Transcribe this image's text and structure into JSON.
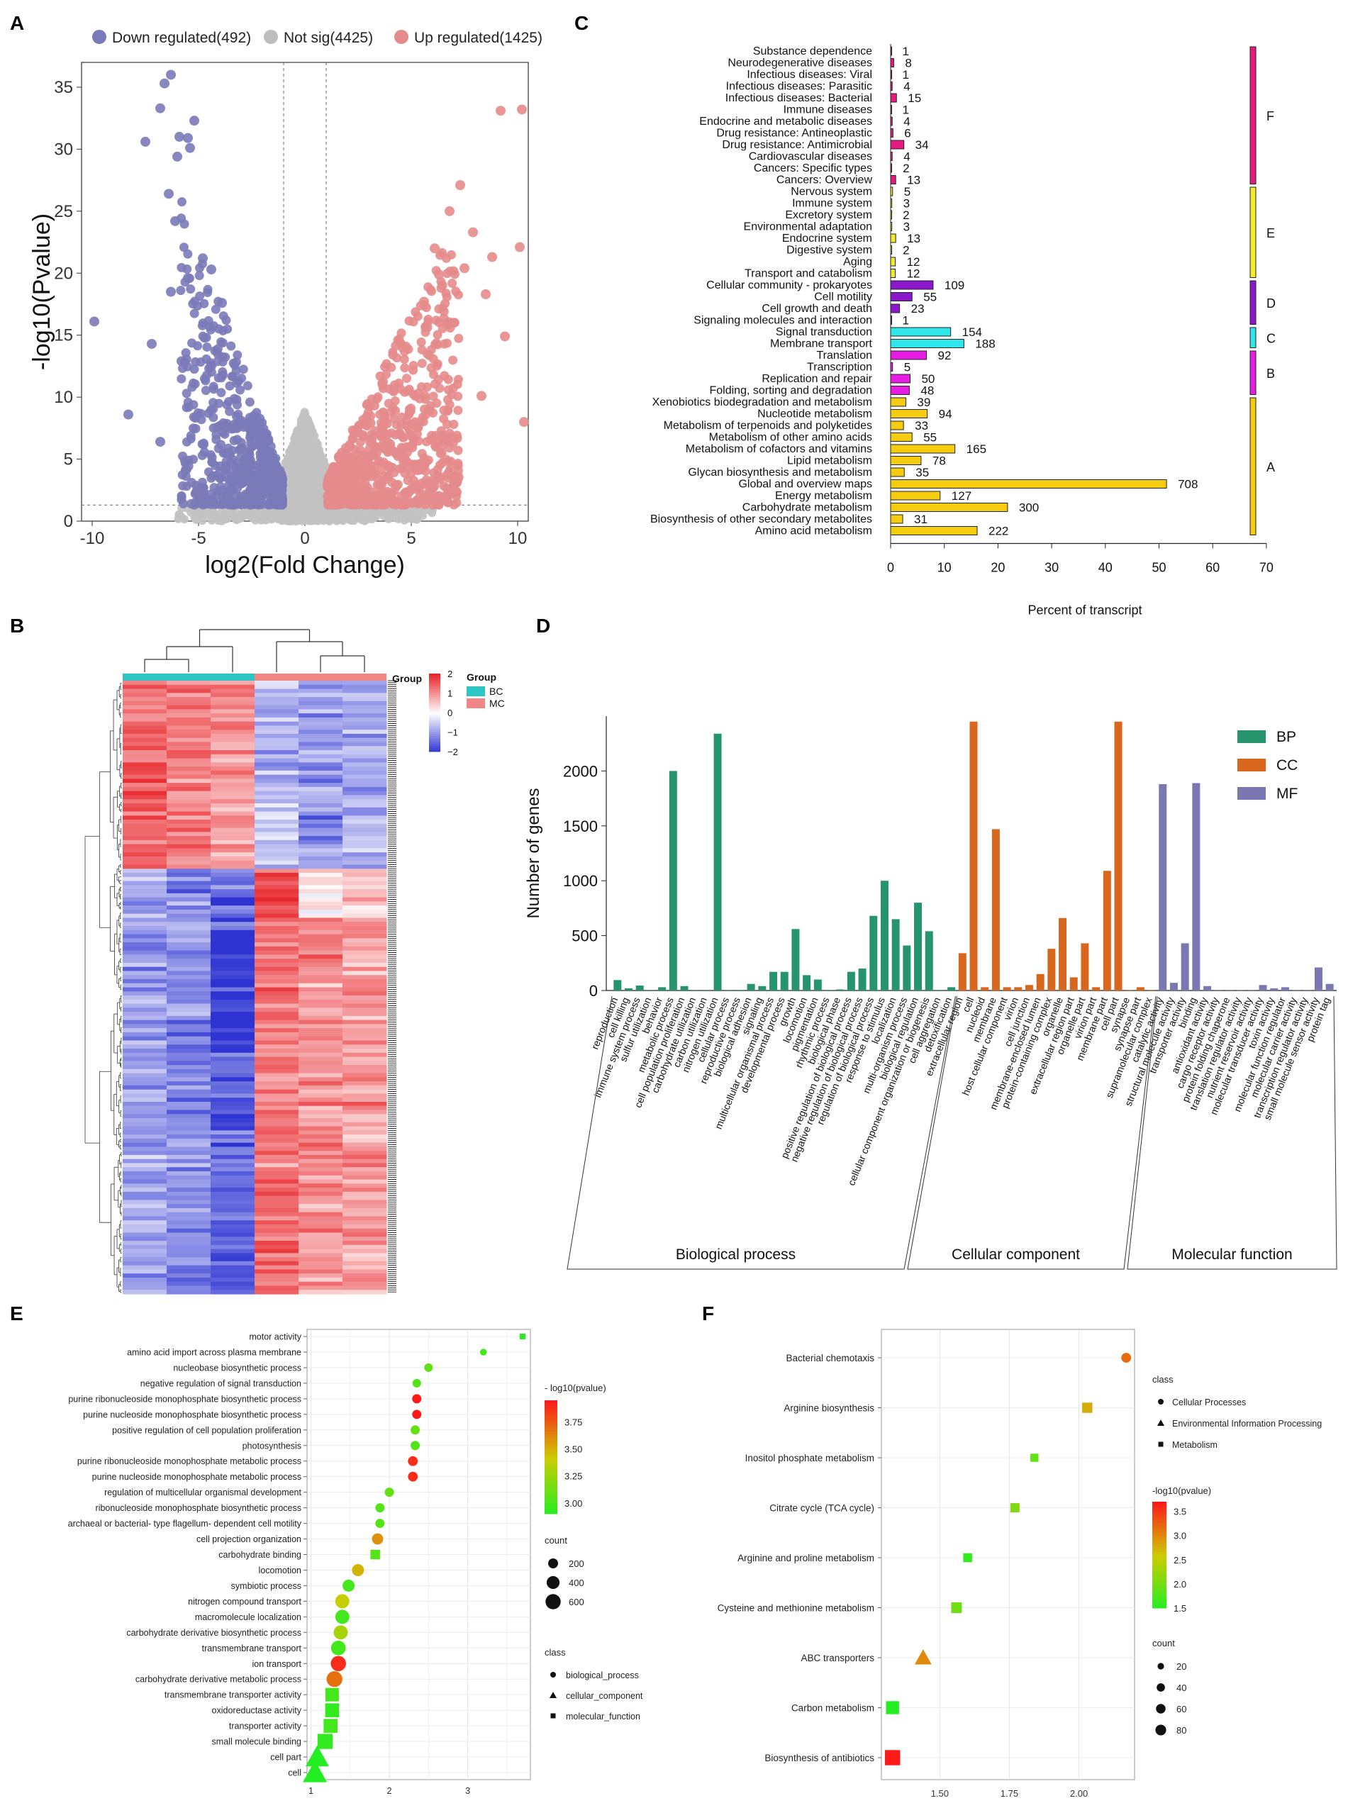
{
  "panel_letters": [
    "A",
    "B",
    "C",
    "D",
    "E",
    "F"
  ],
  "chart_data": [
    {
      "id": "A",
      "type": "scatter",
      "title": "",
      "xlabel": "log2(Fold Change)",
      "ylabel": "-log10(Pvalue)",
      "xlim": [
        -10.5,
        10.5
      ],
      "ylim": [
        0,
        37
      ],
      "xticks": [
        -10,
        -5,
        0,
        5,
        10
      ],
      "yticks": [
        0,
        5,
        10,
        15,
        20,
        25,
        30,
        35
      ],
      "legend": [
        {
          "label": "Down regulated(492)",
          "color": "#7b7ab8"
        },
        {
          "label": "Not sig(4425)",
          "color": "#bdbdbd"
        },
        {
          "label": "Up regulated(1425)",
          "color": "#e58b8b"
        }
      ],
      "thresholds": {
        "x": [
          -1,
          1
        ],
        "y": 1.3
      },
      "highlight_points": {
        "down": [
          [
            -6.3,
            36.0
          ],
          [
            -6.6,
            35.3
          ],
          [
            -6.8,
            33.3
          ],
          [
            -5.2,
            32.3
          ],
          [
            -5.9,
            31.0
          ],
          [
            -7.5,
            30.6
          ],
          [
            -5.5,
            30.9
          ],
          [
            -5.4,
            30.1
          ],
          [
            -6.0,
            29.4
          ],
          [
            -6.4,
            26.4
          ],
          [
            -6.1,
            24.2
          ],
          [
            -9.9,
            16.1
          ],
          [
            -8.3,
            8.6
          ],
          [
            -6.3,
            18.5
          ],
          [
            -7.2,
            14.3
          ],
          [
            -4.8,
            21.2
          ],
          [
            -4.4,
            20.3
          ],
          [
            -5.5,
            19.6
          ],
          [
            -3.9,
            17.6
          ],
          [
            -6.8,
            6.4
          ],
          [
            -5.8,
            12.9
          ]
        ],
        "up": [
          [
            10.2,
            33.2
          ],
          [
            9.2,
            33.1
          ],
          [
            7.3,
            27.1
          ],
          [
            6.8,
            25.0
          ],
          [
            7.9,
            23.3
          ],
          [
            8.5,
            18.3
          ],
          [
            7.5,
            20.4
          ],
          [
            10.1,
            22.1
          ],
          [
            8.8,
            21.3
          ],
          [
            6.3,
            19.9
          ],
          [
            7.0,
            16.0
          ],
          [
            9.4,
            14.9
          ],
          [
            10.3,
            8.0
          ],
          [
            8.3,
            10.1
          ],
          [
            5.6,
            17.7
          ],
          [
            6.1,
            22.0
          ]
        ]
      }
    },
    {
      "id": "B",
      "type": "heatmap",
      "legend_title": "Group",
      "groups": [
        {
          "label": "BC",
          "color": "#2ec6c4"
        },
        {
          "label": "MC",
          "color": "#f08784"
        }
      ],
      "color_scale": {
        "ticks": [
          2,
          1,
          0,
          -1,
          -2
        ],
        "low": "#2d34d1",
        "mid": "#ffffff",
        "high": "#e8262b"
      },
      "columns": 6
    },
    {
      "id": "C",
      "type": "bar",
      "xlabel": "Percent of transcript",
      "xlim": [
        0,
        70
      ],
      "xticks": [
        0,
        10,
        20,
        30,
        40,
        50,
        60,
        70
      ],
      "categories": [
        "Substance dependence",
        "Neurodegenerative diseases",
        "Infectious diseases: Viral",
        "Infectious diseases: Parasitic",
        "Infectious diseases: Bacterial",
        "Immune diseases",
        "Endocrine and metabolic diseases",
        "Drug resistance: Antineoplastic",
        "Drug resistance: Antimicrobial",
        "Cardiovascular diseases",
        "Cancers: Specific types",
        "Cancers: Overview",
        "Nervous system",
        "Immune system",
        "Excretory system",
        "Environmental adaptation",
        "Endocrine system",
        "Digestive system",
        "Aging",
        "Transport and catabolism",
        "Cellular community - prokaryotes",
        "Cell motility",
        "Cell growth and death",
        "Signaling molecules and interaction",
        "Signal transduction",
        "Membrane transport",
        "Translation",
        "Transcription",
        "Replication and repair",
        "Folding, sorting and degradation",
        "Xenobiotics biodegradation and metabolism",
        "Nucleotide metabolism",
        "Metabolism of terpenoids and polyketides",
        "Metabolism of other amino acids",
        "Metabolism of cofactors and vitamins",
        "Lipid metabolism",
        "Glycan biosynthesis and metabolism",
        "Global and overview maps",
        "Energy metabolism",
        "Carbohydrate metabolism",
        "Biosynthesis of other secondary metabolites",
        "Amino acid metabolism"
      ],
      "values": [
        1,
        8,
        1,
        4,
        15,
        1,
        4,
        6,
        34,
        4,
        2,
        13,
        5,
        3,
        2,
        3,
        13,
        2,
        12,
        12,
        109,
        55,
        23,
        1,
        154,
        188,
        92,
        5,
        50,
        48,
        39,
        94,
        33,
        55,
        165,
        78,
        35,
        708,
        127,
        300,
        31,
        222
      ],
      "value_labels": [
        "1",
        "8",
        "1",
        "4",
        "15",
        "1",
        "4",
        "6",
        "34",
        "4",
        "2",
        "13",
        "5",
        "3",
        "2",
        "3",
        "13",
        "2",
        "12",
        "12",
        "109",
        "55",
        "23",
        "1",
        "154",
        "188",
        "92",
        "5",
        "50",
        "48",
        "39",
        "94",
        "33",
        "55",
        "165",
        "78",
        "35",
        "708",
        "127",
        "300",
        "31",
        "222"
      ],
      "classes": [
        "F",
        "F",
        "F",
        "F",
        "F",
        "F",
        "F",
        "F",
        "F",
        "F",
        "F",
        "F",
        "E",
        "E",
        "E",
        "E",
        "E",
        "E",
        "E",
        "E",
        "D",
        "D",
        "D",
        "D",
        "C",
        "C",
        "B",
        "B",
        "B",
        "B",
        "A",
        "A",
        "A",
        "A",
        "A",
        "A",
        "A",
        "A",
        "A",
        "A",
        "A",
        "A"
      ],
      "class_labels": [
        "F",
        "E",
        "D",
        "C",
        "B",
        "A"
      ],
      "class_colors": {
        "F": "#e5197f",
        "E": "#f1ea2d",
        "D": "#8a17c9",
        "C": "#2fe7ea",
        "B": "#e71ce3",
        "A": "#f6cc10"
      },
      "percent_per_count": 0.0726
    },
    {
      "id": "D",
      "type": "bar",
      "ylabel": "Number of genes",
      "ylim": [
        0,
        2500
      ],
      "yticks": [
        0,
        500,
        1000,
        1500,
        2000
      ],
      "legend": [
        {
          "label": "BP",
          "color": "#26956d"
        },
        {
          "label": "CC",
          "color": "#d9661d"
        },
        {
          "label": "MF",
          "color": "#7b77b0"
        }
      ],
      "group_labels": [
        "Biological process",
        "Cellular component",
        "Molecular function"
      ],
      "series": [
        {
          "name": "BP",
          "categories": [
            "reproduction",
            "cell killing",
            "immune system process",
            "sulfur utilization",
            "behavior",
            "metabolic process",
            "cell population proliferation",
            "carbohydrate utilization",
            "carbon utilization",
            "nitrogen utilization",
            "cellular process",
            "reproductive process",
            "biological adhesion",
            "signaling",
            "multicellular organismal process",
            "developmental process",
            "growth",
            "locomotion",
            "pigmentation",
            "rhythmic process",
            "biological phase",
            "positive regulation of biological process",
            "negative regulation of biological process",
            "regulation of biological process",
            "response to stimulus",
            "localization",
            "multi-organism process",
            "biological regulation",
            "cellular component organization or biogenesis",
            "cell aggregation",
            "detoxification"
          ],
          "values": [
            95,
            20,
            45,
            5,
            30,
            2000,
            40,
            5,
            5,
            2340,
            5,
            5,
            60,
            40,
            170,
            170,
            560,
            140,
            100,
            5,
            10,
            170,
            200,
            680,
            1000,
            650,
            410,
            800,
            540,
            5,
            30
          ]
        },
        {
          "name": "CC",
          "categories": [
            "extracellular region",
            "cell",
            "nucleoid",
            "membrane",
            "host cellular component",
            "virion",
            "cell junction",
            "membrane-enclosed lumen",
            "protein-containing complex",
            "organelle",
            "extracellular region part",
            "organelle part",
            "virion part",
            "membrane part",
            "cell part",
            "synapse",
            "synapse part",
            "supramolecular complex"
          ],
          "values": [
            340,
            2450,
            30,
            1470,
            30,
            30,
            50,
            150,
            380,
            660,
            120,
            430,
            30,
            1090,
            2450,
            5,
            30,
            5
          ]
        },
        {
          "name": "MF",
          "categories": [
            "catalytic activity",
            "structural molecule activity",
            "transporter activity",
            "binding",
            "antioxidant activity",
            "cargo receptor activity",
            "protein folding chaperone",
            "translation regulator activity",
            "nutrient reservoir activity",
            "molecular transducer activity",
            "toxin activity",
            "molecular function regulator",
            "molecular carrier activity",
            "transcription regulator activity",
            "small molecule sensor activity",
            "protein tag"
          ],
          "values": [
            1880,
            70,
            430,
            1890,
            40,
            5,
            5,
            5,
            5,
            50,
            20,
            30,
            5,
            5,
            210,
            60
          ]
        }
      ]
    },
    {
      "id": "E",
      "type": "scatter",
      "legend_titles": {
        "color": "- log10(pvalue)",
        "size": "count",
        "shape": "class"
      },
      "xticks": [
        1,
        2,
        3
      ],
      "xlim": [
        0.95,
        3.8
      ],
      "color_ticks": [
        3.75,
        3.5,
        3.25,
        3.0
      ],
      "size_ticks": [
        200,
        400,
        600
      ],
      "shape_classes": [
        "biological_process",
        "cellular_component",
        "molecular_function"
      ],
      "terms": [
        "motor activity",
        "amino acid import across plasma membrane",
        "nucleobase biosynthetic process",
        "negative regulation of signal transduction",
        "purine ribonucleoside monophosphate biosynthetic process",
        "purine nucleoside monophosphate biosynthetic process",
        "positive regulation of cell population proliferation",
        "photosynthesis",
        "purine ribonucleoside monophosphate metabolic process",
        "purine nucleoside monophosphate metabolic process",
        "regulation of multicellular organismal development",
        "ribonucleoside monophosphate biosynthetic process",
        "archaeal or bacterial- type flagellum- dependent cell motility",
        "cell projection organization",
        "carbohydrate binding",
        "locomotion",
        "symbiotic process",
        "nitrogen compound transport",
        "macromolecule localization",
        "carbohydrate derivative biosynthetic process",
        "transmembrane transport",
        "ion transport",
        "carbohydrate derivative metabolic process",
        "transmembrane transporter activity",
        "oxidoreductase activity",
        "transporter activity",
        "small molecule binding",
        "cell part",
        "cell"
      ],
      "x": [
        3.7,
        3.2,
        2.5,
        2.35,
        2.35,
        2.35,
        2.33,
        2.33,
        2.3,
        2.3,
        2.0,
        1.88,
        1.88,
        1.85,
        1.82,
        1.6,
        1.48,
        1.4,
        1.4,
        1.38,
        1.35,
        1.35,
        1.3,
        1.27,
        1.27,
        1.25,
        1.18,
        1.08,
        1.05
      ],
      "pvalue": [
        2.9,
        3.0,
        3.1,
        3.05,
        3.95,
        3.95,
        3.1,
        3.05,
        3.9,
        3.9,
        3.1,
        3.05,
        3.05,
        3.6,
        3.05,
        3.5,
        3.0,
        3.4,
        3.0,
        3.3,
        3.0,
        3.9,
        3.7,
        3.0,
        2.95,
        3.0,
        2.95,
        2.9,
        2.9
      ],
      "count": [
        10,
        10,
        30,
        30,
        40,
        40,
        40,
        40,
        50,
        50,
        40,
        40,
        40,
        80,
        80,
        100,
        100,
        160,
        160,
        160,
        180,
        200,
        220,
        220,
        240,
        240,
        300,
        600,
        650
      ],
      "class": [
        "molecular_function",
        "biological_process",
        "biological_process",
        "biological_process",
        "biological_process",
        "biological_process",
        "biological_process",
        "biological_process",
        "biological_process",
        "biological_process",
        "biological_process",
        "biological_process",
        "biological_process",
        "biological_process",
        "molecular_function",
        "biological_process",
        "biological_process",
        "biological_process",
        "biological_process",
        "biological_process",
        "biological_process",
        "biological_process",
        "biological_process",
        "molecular_function",
        "molecular_function",
        "molecular_function",
        "molecular_function",
        "cellular_component",
        "cellular_component"
      ]
    },
    {
      "id": "F",
      "type": "scatter",
      "legend_titles": {
        "color": "-log10(pvalue)",
        "size": "count",
        "shape": "class"
      },
      "xticks": [
        1.5,
        1.75,
        2.0
      ],
      "xlim": [
        1.29,
        2.2
      ],
      "color_ticks": [
        3.5,
        3.0,
        2.5,
        2.0,
        1.5
      ],
      "size_ticks": [
        20,
        40,
        60,
        80
      ],
      "shape_classes": [
        "Cellular Processes",
        "Environmental Information Processing",
        "Metabolism"
      ],
      "terms": [
        "Bacterial chemotaxis",
        "Arginine biosynthesis",
        "Inositol phosphate metabolism",
        "Citrate cycle (TCA cycle)",
        "Arginine and proline metabolism",
        "Cysteine and methionine metabolism",
        "ABC transporters",
        "Carbon metabolism",
        "Biosynthesis of antibiotics"
      ],
      "x": [
        2.17,
        2.03,
        1.84,
        1.77,
        1.6,
        1.56,
        1.44,
        1.33,
        1.33
      ],
      "pvalue": [
        3.2,
        2.8,
        1.9,
        2.1,
        1.6,
        2.0,
        3.0,
        1.5,
        3.7
      ],
      "count": [
        22,
        25,
        12,
        18,
        16,
        28,
        55,
        50,
        75
      ],
      "class": [
        "Cellular Processes",
        "Metabolism",
        "Metabolism",
        "Metabolism",
        "Metabolism",
        "Metabolism",
        "Environmental Information Processing",
        "Metabolism",
        "Metabolism"
      ]
    }
  ]
}
